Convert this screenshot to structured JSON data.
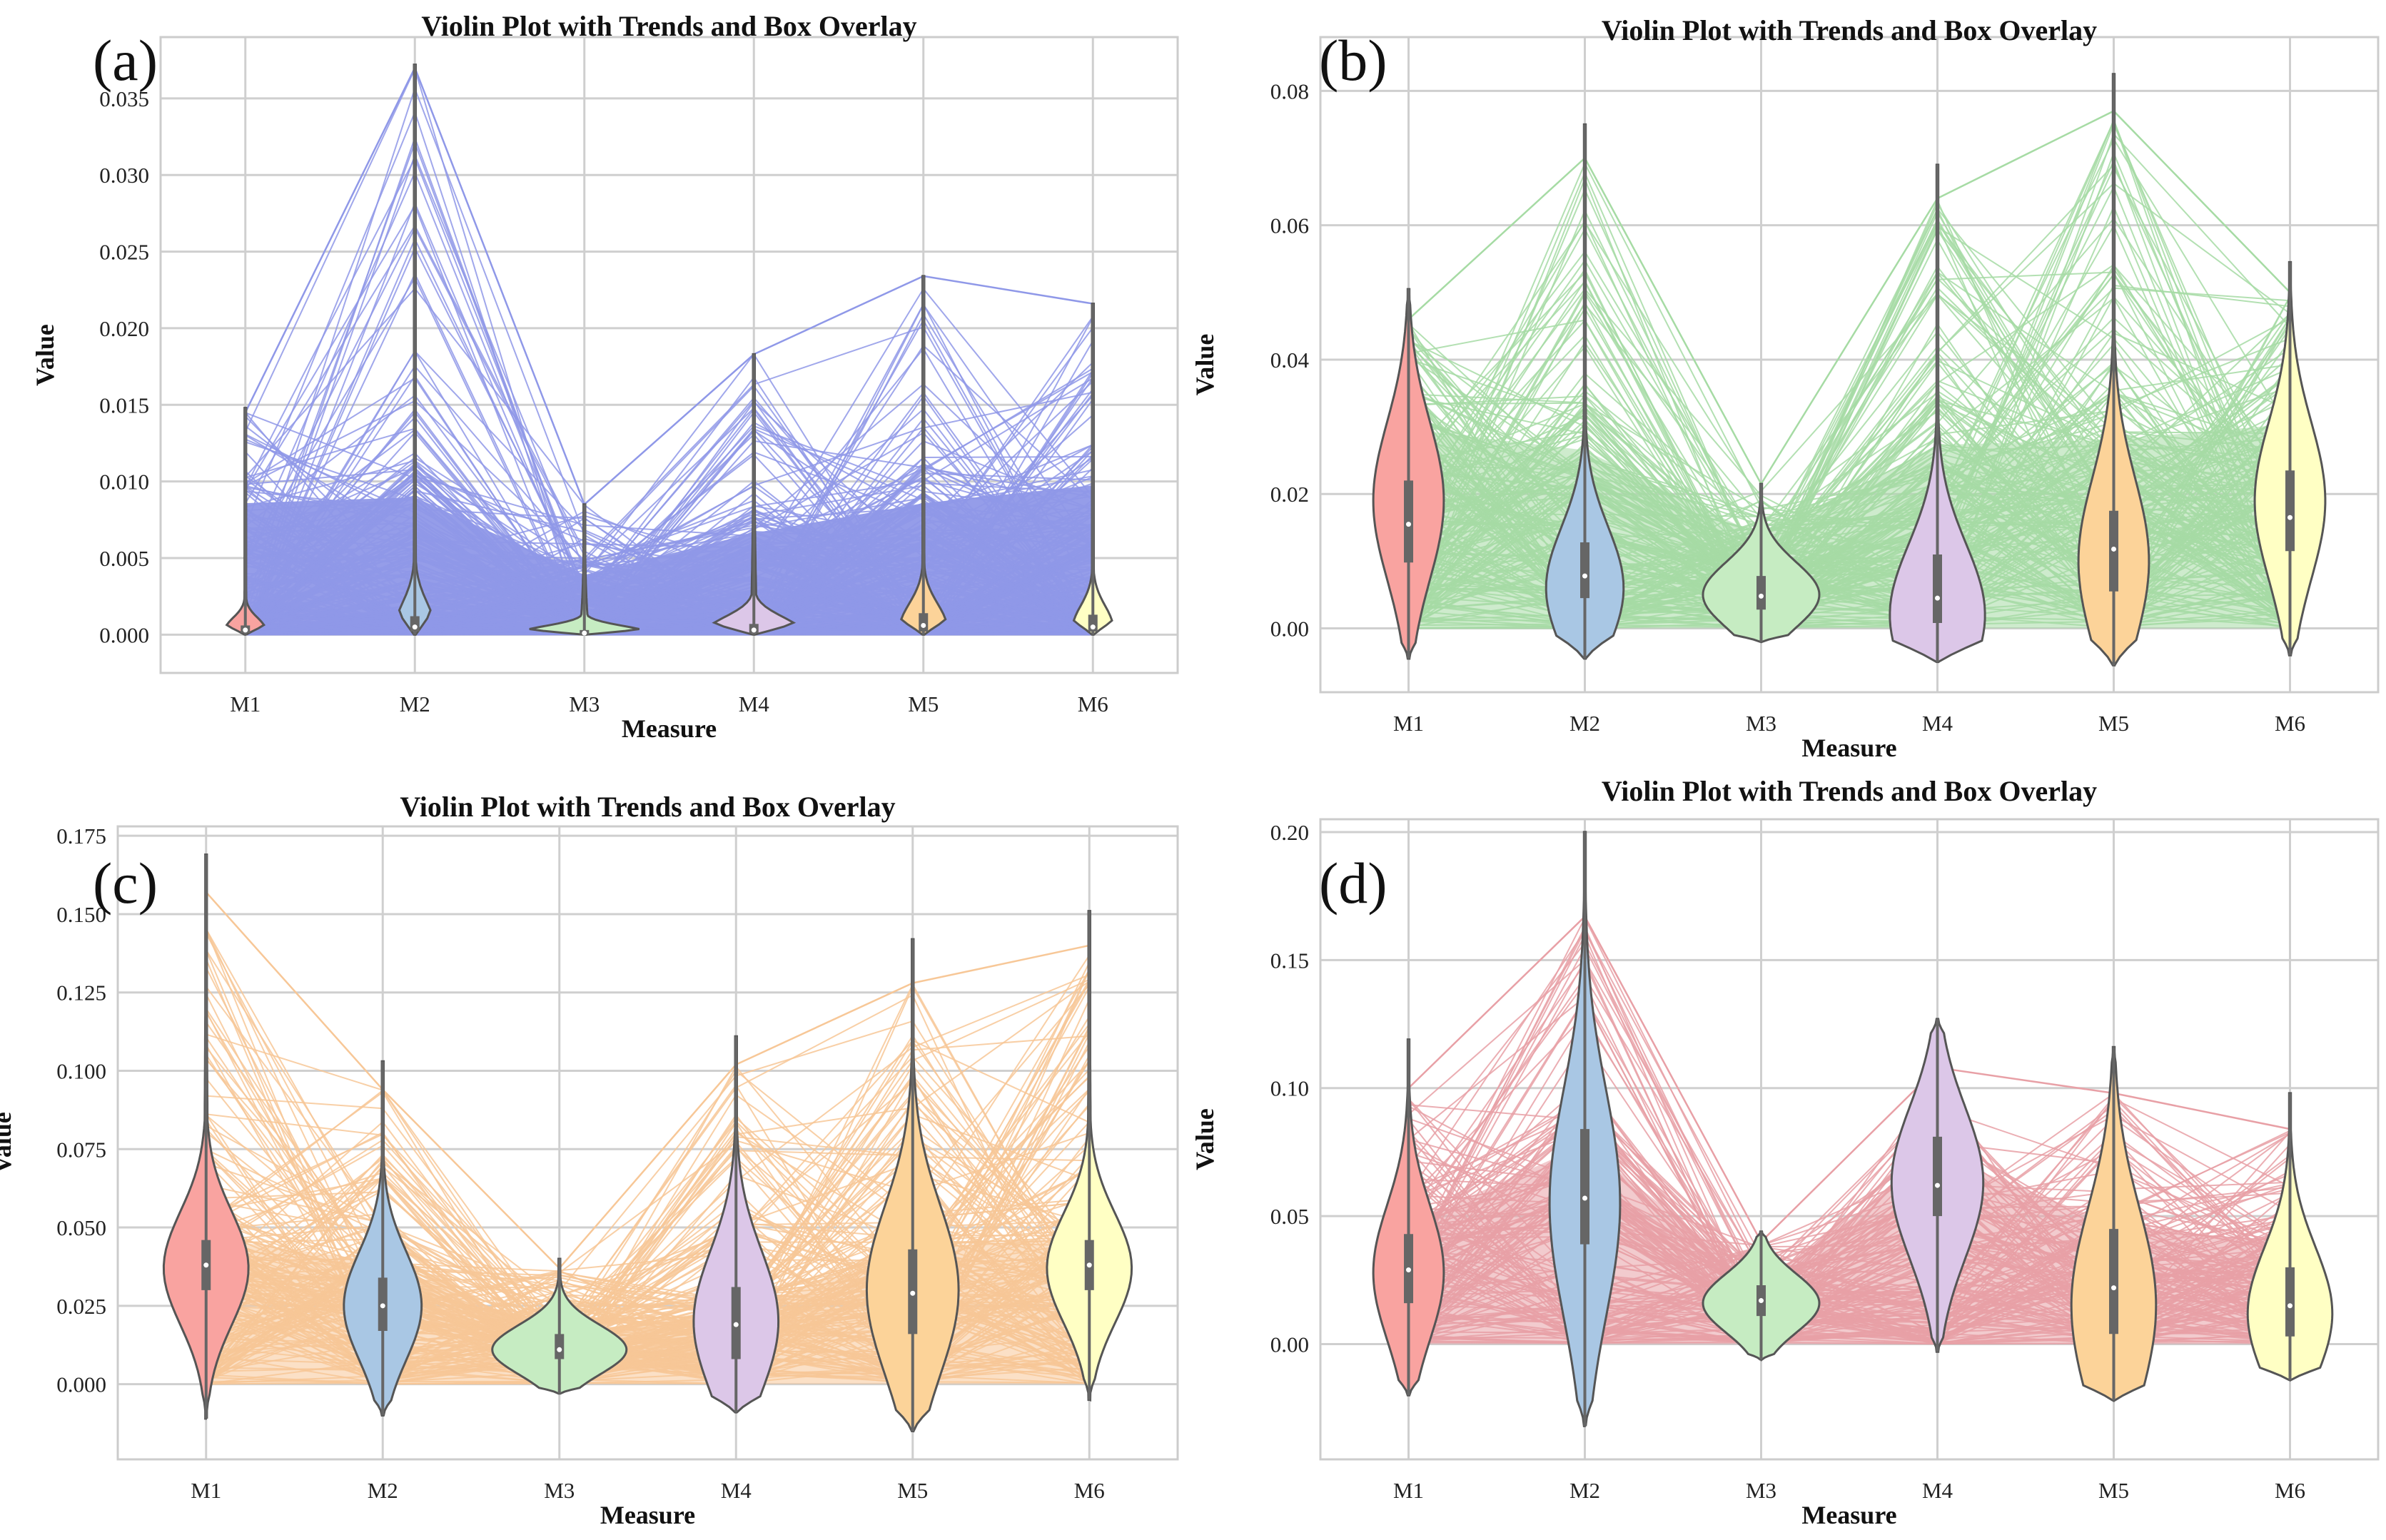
{
  "figure": {
    "measure_colors": [
      "#f9a3a0",
      "#a9c7e4",
      "#c6ecc2",
      "#dcc7e8",
      "#fcd399",
      "#ffffc4"
    ]
  },
  "chart_data": [
    {
      "type": "violin",
      "panel_label": "(a)",
      "title": "Violin Plot with Trends and Box Overlay",
      "xlabel": "Measure",
      "ylabel": "Value",
      "categories": [
        "M1",
        "M2",
        "M3",
        "M4",
        "M5",
        "M6"
      ],
      "ylim": [
        -0.0025,
        0.039
      ],
      "yticks": [
        0.0,
        0.005,
        0.01,
        0.015,
        0.02,
        0.025,
        0.03,
        0.035
      ],
      "ytick_labels": [
        "0.000",
        "0.005",
        "0.010",
        "0.015",
        "0.020",
        "0.025",
        "0.030",
        "0.035"
      ],
      "trend_color": "#8f98e8",
      "trend_max_envelope": [
        0.0145,
        0.037,
        0.0085,
        0.0183,
        0.0234,
        0.0216
      ],
      "trend_dense_level": [
        0.011,
        0.0115,
        0.005,
        0.0085,
        0.011,
        0.0125
      ],
      "violins": [
        {
          "category": "M1",
          "min": 0.0,
          "max": 0.0148,
          "q1": 0.0001,
          "median": 0.0003,
          "q3": 0.0006,
          "mode": 0.0003,
          "width": 0.12
        },
        {
          "category": "M2",
          "min": 0.0,
          "max": 0.0372,
          "q1": 0.0002,
          "median": 0.0005,
          "q3": 0.0012,
          "mode": 0.0003,
          "width": 0.12
        },
        {
          "category": "M3",
          "min": 0.0,
          "max": 0.0085,
          "q1": 0.0,
          "median": 0.0001,
          "q3": 0.0003,
          "mode": 0.0001,
          "width": 0.38
        },
        {
          "category": "M4",
          "min": 0.0,
          "max": 0.0183,
          "q1": 0.0001,
          "median": 0.0003,
          "q3": 0.0007,
          "mode": 0.0002,
          "width": 0.28
        },
        {
          "category": "M5",
          "min": 0.0,
          "max": 0.0234,
          "q1": 0.0002,
          "median": 0.0006,
          "q3": 0.0014,
          "mode": 0.0004,
          "width": 0.14
        },
        {
          "category": "M6",
          "min": 0.0,
          "max": 0.0216,
          "q1": 0.0002,
          "median": 0.0005,
          "q3": 0.0013,
          "mode": 0.0004,
          "width": 0.12
        }
      ]
    },
    {
      "type": "violin",
      "panel_label": "(b)",
      "title": "Violin Plot with Trends and Box Overlay",
      "xlabel": "Measure",
      "ylabel": "Value",
      "categories": [
        "M1",
        "M2",
        "M3",
        "M4",
        "M5",
        "M6"
      ],
      "ylim": [
        -0.0095,
        0.088
      ],
      "yticks": [
        0.0,
        0.02,
        0.04,
        0.06,
        0.08
      ],
      "ytick_labels": [
        "0.00",
        "0.02",
        "0.04",
        "0.06",
        "0.08"
      ],
      "trend_color": "#a6dba4",
      "trend_max_envelope": [
        0.046,
        0.07,
        0.0215,
        0.064,
        0.077,
        0.05
      ],
      "trend_dense_level": [
        0.038,
        0.034,
        0.0175,
        0.035,
        0.036,
        0.039
      ],
      "violins": [
        {
          "category": "M1",
          "min": -0.0045,
          "max": 0.0505,
          "q1": 0.0098,
          "median": 0.0155,
          "q3": 0.022,
          "mode": 0.019,
          "width": 0.2
        },
        {
          "category": "M2",
          "min": -0.0045,
          "max": 0.075,
          "q1": 0.0045,
          "median": 0.0078,
          "q3": 0.0128,
          "mode": 0.006,
          "width": 0.22
        },
        {
          "category": "M3",
          "min": -0.002,
          "max": 0.0215,
          "q1": 0.0028,
          "median": 0.0048,
          "q3": 0.0078,
          "mode": 0.005,
          "width": 0.33
        },
        {
          "category": "M4",
          "min": -0.005,
          "max": 0.069,
          "q1": 0.0008,
          "median": 0.0045,
          "q3": 0.011,
          "mode": 0.002,
          "width": 0.27
        },
        {
          "category": "M5",
          "min": -0.0055,
          "max": 0.0825,
          "q1": 0.0055,
          "median": 0.0118,
          "q3": 0.0175,
          "mode": 0.01,
          "width": 0.2
        },
        {
          "category": "M6",
          "min": -0.004,
          "max": 0.0545,
          "q1": 0.0115,
          "median": 0.0165,
          "q3": 0.0235,
          "mode": 0.019,
          "width": 0.2
        }
      ]
    },
    {
      "type": "violin",
      "panel_label": "(c)",
      "title": "Violin Plot with Trends and Box Overlay",
      "xlabel": "Measure",
      "ylabel": "Value",
      "categories": [
        "M1",
        "M2",
        "M3",
        "M4",
        "M5",
        "M6"
      ],
      "ylim": [
        -0.024,
        0.178
      ],
      "yticks": [
        0.0,
        0.025,
        0.05,
        0.075,
        0.1,
        0.125,
        0.15,
        0.175
      ],
      "ytick_labels": [
        "0.000",
        "0.025",
        "0.050",
        "0.075",
        "0.100",
        "0.125",
        "0.150",
        "0.175"
      ],
      "trend_color": "#f7c797",
      "trend_max_envelope": [
        0.157,
        0.094,
        0.037,
        0.102,
        0.128,
        0.14
      ],
      "trend_dense_level": [
        0.06,
        0.05,
        0.02,
        0.03,
        0.055,
        0.06
      ],
      "violins": [
        {
          "category": "M1",
          "min": -0.011,
          "max": 0.169,
          "q1": 0.03,
          "median": 0.038,
          "q3": 0.046,
          "mode": 0.037,
          "width": 0.24
        },
        {
          "category": "M2",
          "min": -0.01,
          "max": 0.103,
          "q1": 0.017,
          "median": 0.025,
          "q3": 0.034,
          "mode": 0.025,
          "width": 0.22
        },
        {
          "category": "M3",
          "min": -0.003,
          "max": 0.04,
          "q1": 0.008,
          "median": 0.011,
          "q3": 0.016,
          "mode": 0.011,
          "width": 0.38
        },
        {
          "category": "M4",
          "min": -0.009,
          "max": 0.111,
          "q1": 0.008,
          "median": 0.019,
          "q3": 0.031,
          "mode": 0.02,
          "width": 0.24
        },
        {
          "category": "M5",
          "min": -0.015,
          "max": 0.142,
          "q1": 0.016,
          "median": 0.029,
          "q3": 0.043,
          "mode": 0.03,
          "width": 0.26
        },
        {
          "category": "M6",
          "min": -0.005,
          "max": 0.151,
          "q1": 0.03,
          "median": 0.038,
          "q3": 0.046,
          "mode": 0.037,
          "width": 0.24
        }
      ]
    },
    {
      "type": "violin",
      "panel_label": "(d)",
      "title": "Violin Plot with Trends and Box Overlay",
      "xlabel": "Measure",
      "ylabel": "Value",
      "categories": [
        "M1",
        "M2",
        "M3",
        "M4",
        "M5",
        "M6"
      ],
      "ylim": [
        -0.045,
        0.205
      ],
      "yticks": [
        0.0,
        0.05,
        0.1,
        0.15,
        0.2
      ],
      "ytick_labels": [
        "0.00",
        "0.05",
        "0.10",
        "0.15",
        "0.20"
      ],
      "trend_color": "#e8a0a6",
      "trend_max_envelope": [
        0.1,
        0.167,
        0.04,
        0.108,
        0.098,
        0.084
      ],
      "trend_dense_level": [
        0.06,
        0.1,
        0.03,
        0.095,
        0.06,
        0.05
      ],
      "violins": [
        {
          "category": "M1",
          "min": -0.02,
          "max": 0.119,
          "q1": 0.016,
          "median": 0.029,
          "q3": 0.043,
          "mode": 0.028,
          "width": 0.2
        },
        {
          "category": "M2",
          "min": -0.032,
          "max": 0.2,
          "q1": 0.039,
          "median": 0.057,
          "q3": 0.084,
          "mode": 0.055,
          "width": 0.2
        },
        {
          "category": "M3",
          "min": -0.006,
          "max": 0.044,
          "q1": 0.011,
          "median": 0.017,
          "q3": 0.023,
          "mode": 0.016,
          "width": 0.33
        },
        {
          "category": "M4",
          "min": -0.003,
          "max": 0.127,
          "q1": 0.05,
          "median": 0.062,
          "q3": 0.081,
          "mode": 0.063,
          "width": 0.26
        },
        {
          "category": "M5",
          "min": -0.022,
          "max": 0.116,
          "q1": 0.004,
          "median": 0.022,
          "q3": 0.045,
          "mode": 0.015,
          "width": 0.24
        },
        {
          "category": "M6",
          "min": -0.014,
          "max": 0.098,
          "q1": 0.003,
          "median": 0.015,
          "q3": 0.03,
          "mode": 0.012,
          "width": 0.24
        }
      ]
    }
  ]
}
